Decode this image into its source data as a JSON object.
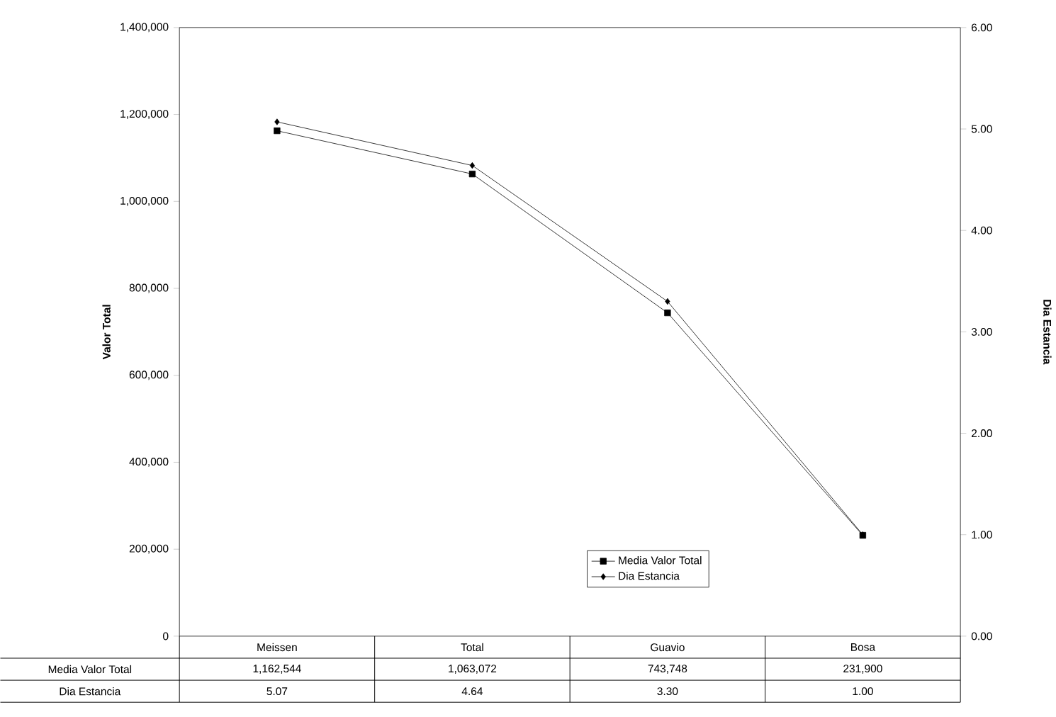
{
  "chart_data": {
    "type": "line",
    "ylabel": "Valor Total",
    "y2label": "Dia Estancia",
    "categories": [
      "Meissen",
      "Total",
      "Guavio",
      "Bosa"
    ],
    "series": [
      {
        "name": "Media Valor Total",
        "color": "#000000",
        "marker": "square",
        "values": [
          1162544,
          1063072,
          743748,
          231900
        ],
        "value_labels": [
          "1,162,544",
          "1,063,072",
          "743,748",
          "231,900"
        ]
      },
      {
        "name": "Dia Estancia",
        "color": "#000000",
        "marker": "diamond",
        "axis": "y2",
        "values": [
          5.07,
          4.64,
          3.3,
          1.0
        ],
        "value_labels": [
          "5.07",
          "4.64",
          "3.30",
          "1.00"
        ]
      }
    ],
    "ylim": [
      0,
      1400000
    ],
    "yticks": [
      {
        "value": 0,
        "label": "0"
      },
      {
        "value": 200000,
        "label": "200,000"
      },
      {
        "value": 400000,
        "label": "400,000"
      },
      {
        "value": 600000,
        "label": "600,000"
      },
      {
        "value": 800000,
        "label": "800,000"
      },
      {
        "value": 1000000,
        "label": "1,000,000"
      },
      {
        "value": 1200000,
        "label": "1,200,000"
      },
      {
        "value": 1400000,
        "label": "1,400,000"
      }
    ],
    "y2lim": [
      0,
      6
    ],
    "y2ticks": [
      {
        "value": 0,
        "label": "0.00"
      },
      {
        "value": 1,
        "label": "1.00"
      },
      {
        "value": 2,
        "label": "2.00"
      },
      {
        "value": 3,
        "label": "3.00"
      },
      {
        "value": 4,
        "label": "4.00"
      },
      {
        "value": 5,
        "label": "5.00"
      },
      {
        "value": 6,
        "label": "6.00"
      }
    ],
    "legend": "bottom",
    "line_style": "solid"
  }
}
